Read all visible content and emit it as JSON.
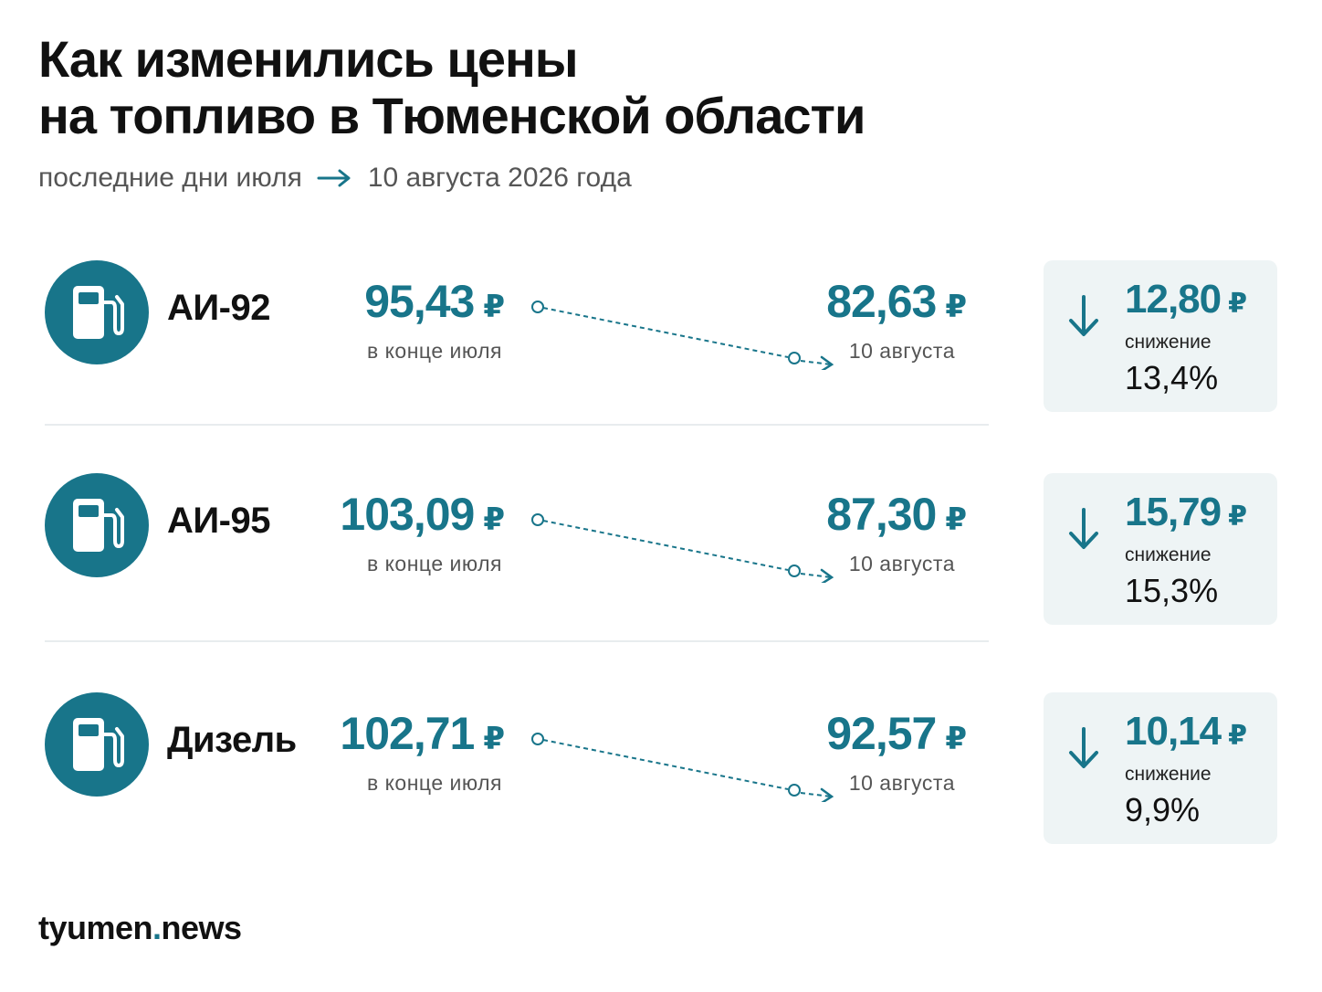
{
  "header": {
    "title_line1": "Как изменились цены",
    "title_line2": "на топливо в Тюменской области",
    "subtitle_from": "последние дни июля",
    "subtitle_to": "10 августа 2026 года"
  },
  "colors": {
    "accent": "#18758a",
    "card_bg": "#eef4f5",
    "text_dark": "#111111",
    "text_muted": "#555555"
  },
  "icons": {
    "fuel": "fuel-pump-icon",
    "change": "arrow-down-icon",
    "timeline": "arrow-right-icon"
  },
  "currency": "₽",
  "old_caption": "в конце июля",
  "new_caption": "10 августа",
  "delta_label": "снижение",
  "rows": [
    {
      "fuel": "АИ-92",
      "old_price": "95,43",
      "new_price": "82,63",
      "delta": "12,80",
      "pct": "13,4%"
    },
    {
      "fuel": "АИ-95",
      "old_price": "103,09",
      "new_price": "87,30",
      "delta": "15,79",
      "pct": "15,3%"
    },
    {
      "fuel": "Дизель",
      "old_price": "102,71",
      "new_price": "92,57",
      "delta": "10,14",
      "pct": "9,9%"
    }
  ],
  "footer": {
    "brand_main": "tyumen",
    "brand_dot": ".",
    "brand_tail": "news"
  }
}
